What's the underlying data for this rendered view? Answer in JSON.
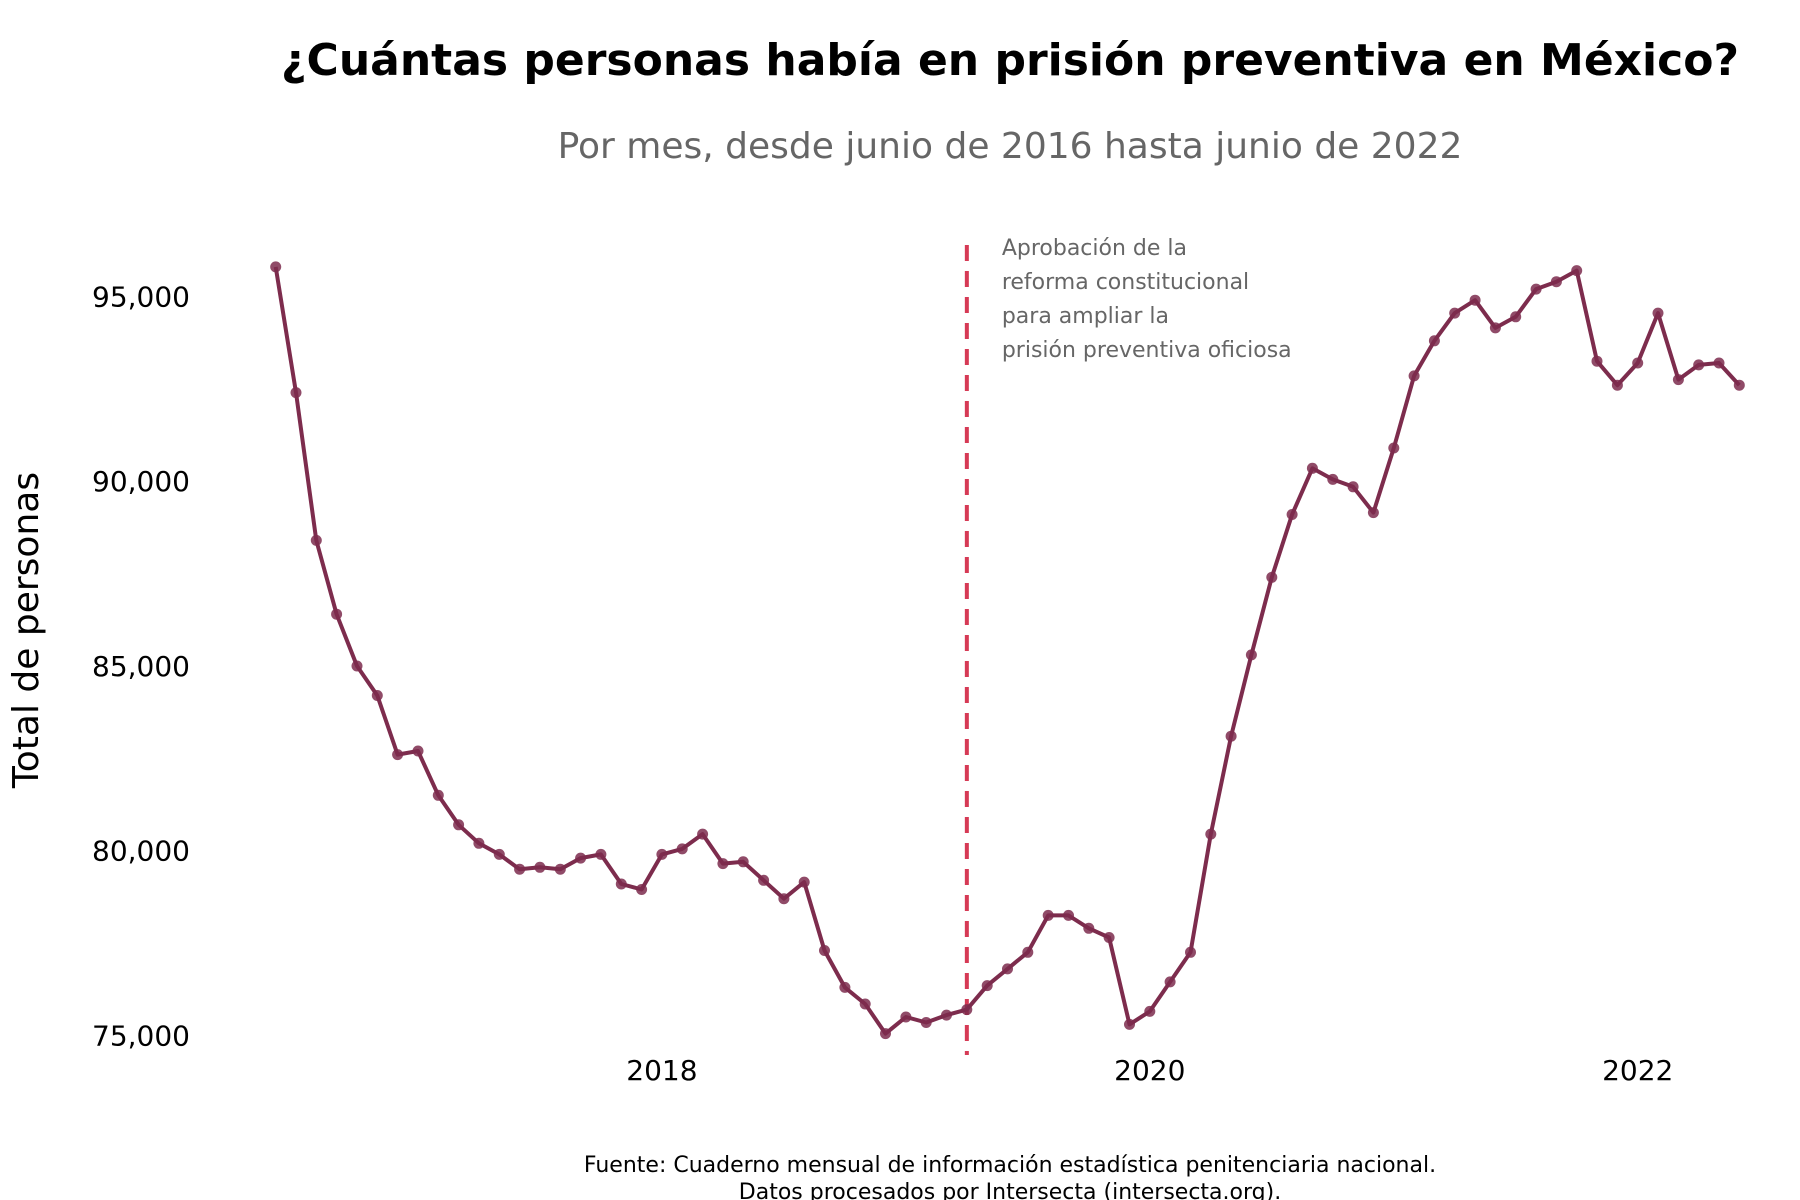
{
  "chart_data": {
    "type": "line",
    "title": "¿Cuántas personas había en prisión preventiva en México?",
    "subtitle": "Por mes, desde junio de 2016 hasta junio de 2022",
    "xlabel": "",
    "ylabel": "Total de personas",
    "x_start": "2016-06",
    "x_end": "2022-06",
    "xlim": [
      "2016-04",
      "2022-08"
    ],
    "ylim": [
      74200,
      96800
    ],
    "grid": false,
    "legend": "none",
    "x_ticks": [
      {
        "date": "2018-01",
        "label": "2018"
      },
      {
        "date": "2020-01",
        "label": "2020"
      },
      {
        "date": "2022-01",
        "label": "2022"
      }
    ],
    "y_ticks": [
      {
        "value": 75000,
        "label": "75,000"
      },
      {
        "value": 80000,
        "label": "80,000"
      },
      {
        "value": 85000,
        "label": "85,000"
      },
      {
        "value": 90000,
        "label": "90,000"
      },
      {
        "value": 95000,
        "label": "95,000"
      }
    ],
    "series": [
      {
        "color": "#7d2c4d",
        "values": [
          95800,
          92400,
          88400,
          86400,
          85000,
          84200,
          82600,
          82700,
          81500,
          80700,
          80200,
          79900,
          79500,
          79550,
          79500,
          79800,
          79900,
          79100,
          78950,
          79900,
          80050,
          80450,
          79650,
          79700,
          79200,
          78700,
          79150,
          77300,
          76300,
          75850,
          75050,
          75500,
          75350,
          75550,
          75700,
          76350,
          76800,
          77250,
          78250,
          78250,
          77900,
          77650,
          75300,
          75650,
          76450,
          77250,
          80450,
          83100,
          85300,
          87400,
          89100,
          90350,
          90050,
          89850,
          89150,
          90900,
          92850,
          93800,
          94550,
          94900,
          94150,
          94450,
          95200,
          95400,
          95700,
          93250,
          92600,
          93200,
          94550,
          92750,
          93150,
          93200,
          92600
        ]
      }
    ],
    "annotations": [
      {
        "type": "vline",
        "date": "2019-04",
        "color": "#d63a55",
        "lines": [
          "Aprobación de la",
          "reforma constitucional",
          "para ampliar la",
          "prisión preventiva oficiosa"
        ]
      }
    ],
    "caption_lines": [
      "Fuente: Cuaderno mensual de información estadística penitenciaria nacional.",
      "Datos procesados por Intersecta (intersecta.org)."
    ]
  }
}
